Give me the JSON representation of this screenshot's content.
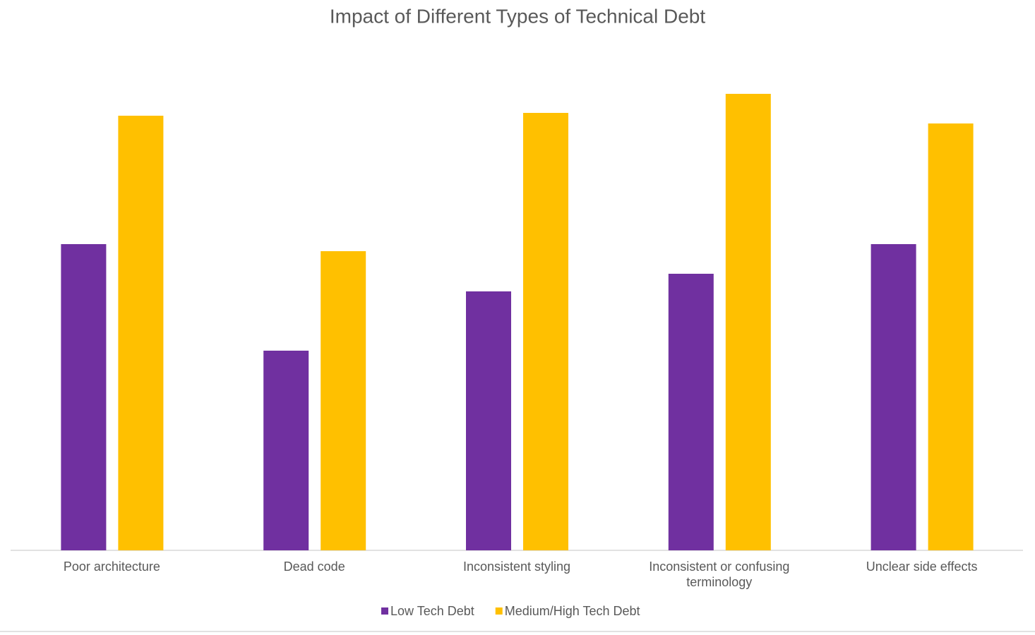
{
  "chart_data": {
    "type": "bar",
    "title": "Impact of Different Types of Technical Debt",
    "categories": [
      "Poor architecture",
      "Dead code",
      "Inconsistent styling",
      "Inconsistent or confusing terminology",
      "Unclear side effects"
    ],
    "series": [
      {
        "name": "Low Tech Debt",
        "color": "#7030a0",
        "values": [
          43.4,
          28.3,
          36.7,
          39.2,
          43.4
        ]
      },
      {
        "name": "Medium/High Tech Debt",
        "color": "#ffc000",
        "values": [
          61.6,
          42.4,
          62.0,
          64.7,
          60.5
        ]
      }
    ],
    "ylim": [
      0,
      70
    ],
    "legend": "bottom"
  }
}
